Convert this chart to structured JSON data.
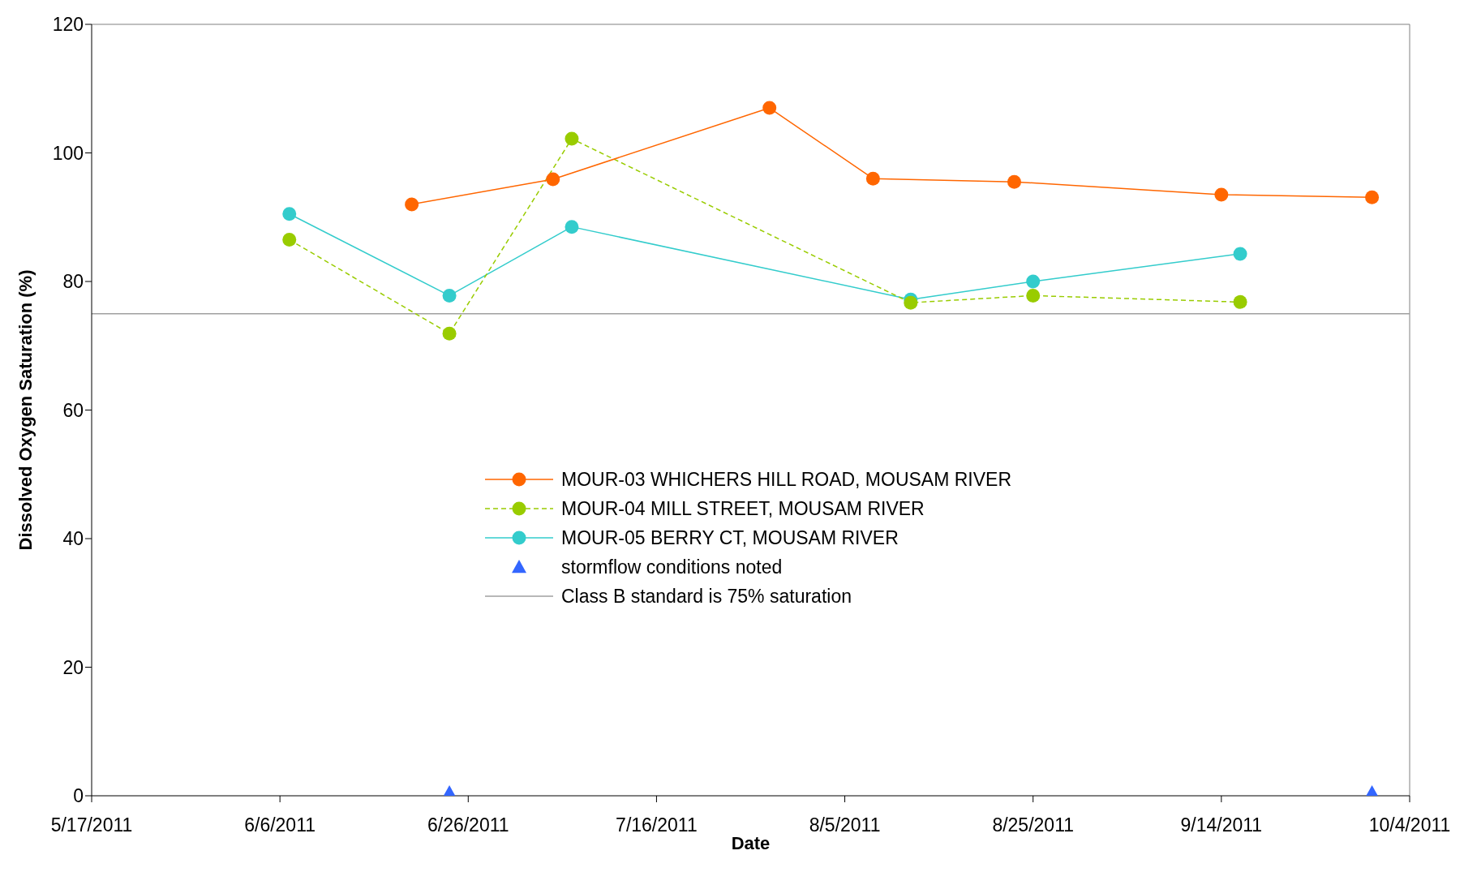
{
  "chart_data": {
    "type": "line",
    "xlabel": "Date",
    "ylabel": "Dissolved Oxygen Saturation (%)",
    "xlim": [
      "2011-05-17",
      "2011-10-04"
    ],
    "xticks": [
      {
        "value": "2011-05-17",
        "label": "5/17/2011"
      },
      {
        "value": "2011-06-06",
        "label": "6/6/2011"
      },
      {
        "value": "2011-06-26",
        "label": "6/26/2011"
      },
      {
        "value": "2011-07-16",
        "label": "7/16/2011"
      },
      {
        "value": "2011-08-05",
        "label": "8/5/2011"
      },
      {
        "value": "2011-08-25",
        "label": "8/25/2011"
      },
      {
        "value": "2011-09-14",
        "label": "9/14/2011"
      },
      {
        "value": "2011-10-04",
        "label": "10/4/2011"
      }
    ],
    "ylim": [
      0,
      120
    ],
    "yticks": [
      0,
      20,
      40,
      60,
      80,
      100,
      120
    ],
    "grid": false,
    "legend": "center",
    "marker": "circle",
    "series": [
      {
        "name": "MOUR-03 WHICHERS HILL ROAD, MOUSAM RIVER",
        "color": "#ff6600",
        "line_style": "solid",
        "x": [
          "2011-06-20",
          "2011-07-05",
          "2011-07-28",
          "2011-08-08",
          "2011-08-23",
          "2011-09-14",
          "2011-09-30"
        ],
        "values": [
          92.0,
          95.9,
          107.0,
          96.0,
          95.5,
          93.5,
          93.1
        ]
      },
      {
        "name": "MOUR-04 MILL STREET, MOUSAM RIVER",
        "color": "#99cc00",
        "line_style": "dashed",
        "x": [
          "2011-06-07",
          "2011-06-24",
          "2011-07-07",
          "2011-08-12",
          "2011-08-25",
          "2011-09-16"
        ],
        "values": [
          86.5,
          71.9,
          102.2,
          76.7,
          77.8,
          76.8
        ]
      },
      {
        "name": "MOUR-05 BERRY CT, MOUSAM RIVER",
        "color": "#33cccc",
        "line_style": "solid",
        "x": [
          "2011-06-07",
          "2011-06-24",
          "2011-07-07",
          "2011-08-12",
          "2011-08-25",
          "2011-09-16"
        ],
        "values": [
          90.5,
          77.8,
          88.5,
          77.2,
          80.0,
          84.3
        ]
      },
      {
        "name": "stormflow conditions noted",
        "type": "scatter",
        "marker": "triangle",
        "color": "#3366ff",
        "x": [
          "2011-06-24",
          "2011-09-30"
        ],
        "values": [
          0,
          0
        ]
      }
    ],
    "ref_lines": [
      {
        "axis": "y",
        "value": 75,
        "label": "Class B standard is 75% saturation",
        "color": "#a0a0a0",
        "line_style": "solid"
      }
    ]
  }
}
